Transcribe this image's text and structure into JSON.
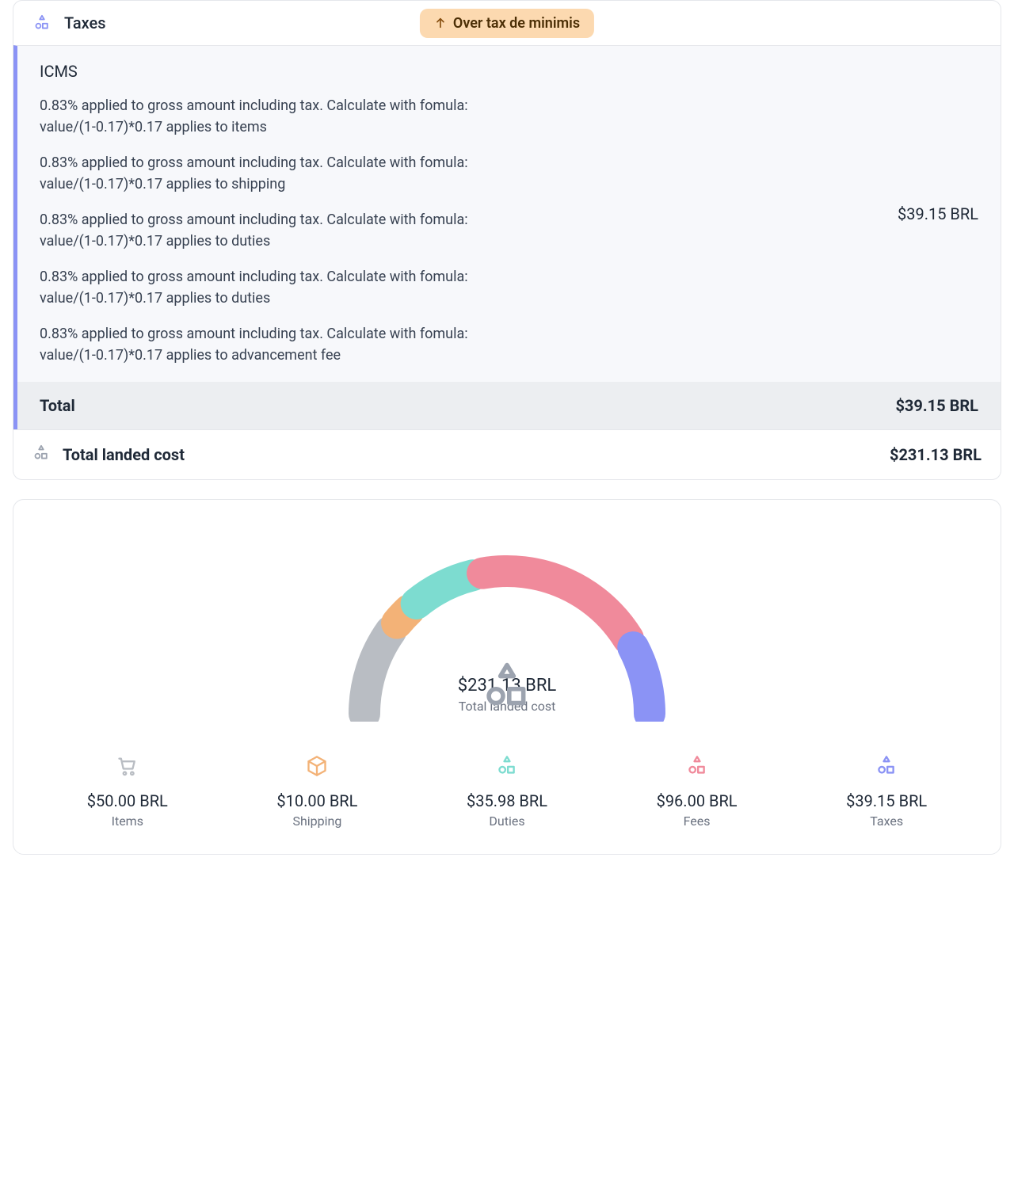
{
  "taxes_section": {
    "title": "Taxes",
    "icon_color": "#8b93f5",
    "badge": {
      "text": "Over tax de minimis",
      "bg": "#fcd9b0",
      "fg": "#4b2e05",
      "arrow_color": "#854d0e"
    },
    "accent_color": "#8b93f5",
    "body_bg": "#f7f8fb",
    "total_bg": "#eceef1",
    "tax_name": "ICMS",
    "descriptions": [
      "0.83% applied to gross amount including tax. Calculate with fomula: value/(1-0.17)*0.17 applies to items",
      "0.83% applied to gross amount including tax. Calculate with fomula: value/(1-0.17)*0.17 applies to shipping",
      "0.83% applied to gross amount including tax. Calculate with fomula: value/(1-0.17)*0.17 applies to duties",
      "0.83% applied to gross amount including tax. Calculate with fomula: value/(1-0.17)*0.17 applies to duties",
      "0.83% applied to gross amount including tax. Calculate with fomula: value/(1-0.17)*0.17 applies to advancement fee"
    ],
    "amount": "$39.15 BRL",
    "total_label": "Total",
    "total_amount": "$39.15 BRL",
    "landed_label": "Total landed cost",
    "landed_amount": "$231.13 BRL",
    "landed_icon_color": "#9ca3af"
  },
  "chart": {
    "type": "semicircle-donut",
    "total_value": "$231.13 BRL",
    "total_label": "Total landed cost",
    "center_icon_color": "#9ca3af",
    "background_color": "#ffffff",
    "stroke_width": 40,
    "radius": 180,
    "gap_deg": 4,
    "segments": [
      {
        "key": "items",
        "label": "Items",
        "value": 50.0,
        "display": "$50.00 BRL",
        "color": "#b9bdc3",
        "icon": "cart"
      },
      {
        "key": "shipping",
        "label": "Shipping",
        "value": 10.0,
        "display": "$10.00 BRL",
        "color": "#f3b277",
        "icon": "box"
      },
      {
        "key": "duties",
        "label": "Duties",
        "value": 35.98,
        "display": "$35.98 BRL",
        "color": "#7ddcd0",
        "icon": "shapes"
      },
      {
        "key": "fees",
        "label": "Fees",
        "value": 96.0,
        "display": "$96.00 BRL",
        "color": "#f08a9b",
        "icon": "shapes"
      },
      {
        "key": "taxes",
        "label": "Taxes",
        "value": 39.15,
        "display": "$39.15 BRL",
        "color": "#8b93f5",
        "icon": "shapes"
      }
    ]
  }
}
